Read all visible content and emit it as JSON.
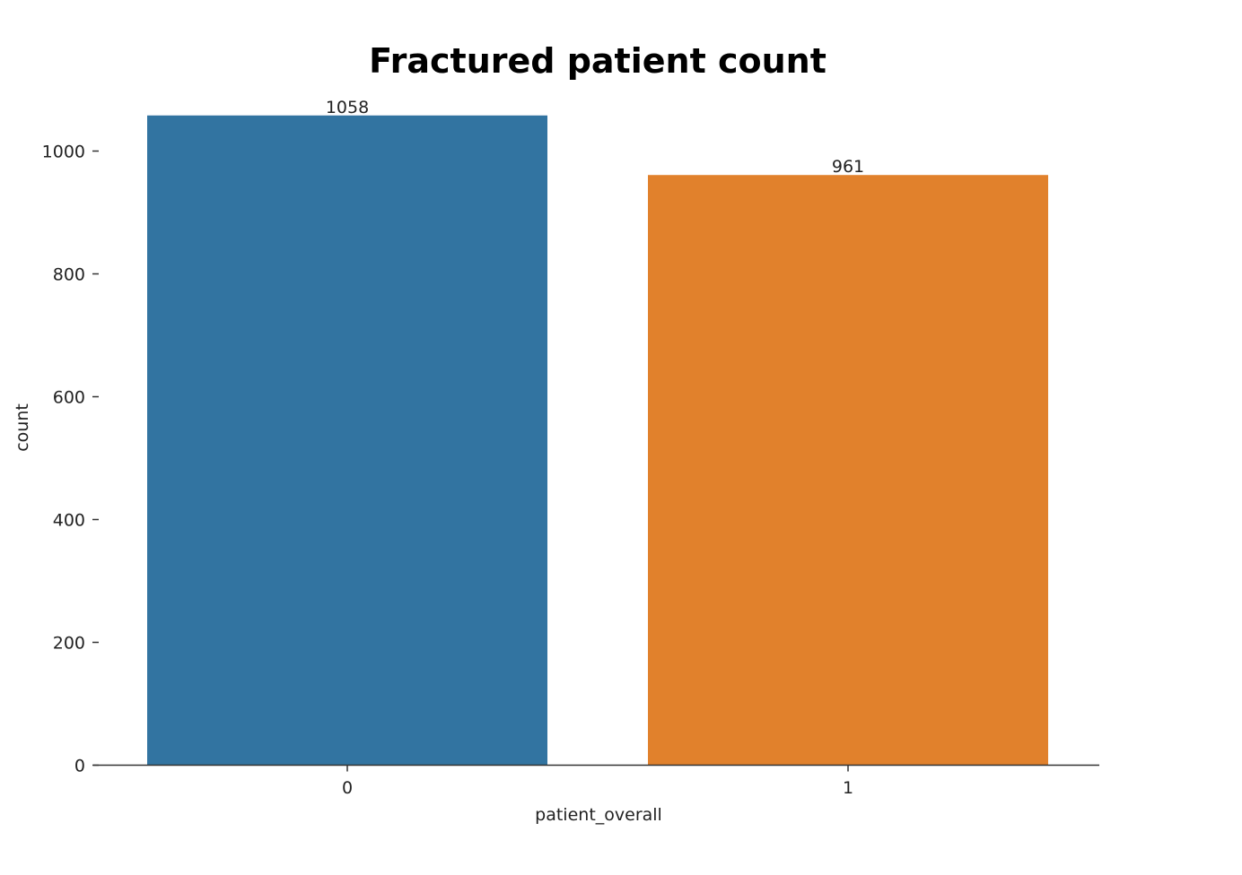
{
  "chart_data": {
    "type": "bar",
    "title": "Fractured patient count",
    "xlabel": "patient_overall",
    "ylabel": "count",
    "categories": [
      "0",
      "1"
    ],
    "values": [
      1058,
      961
    ],
    "data_labels": [
      "1058",
      "961"
    ],
    "yticks": [
      0,
      200,
      400,
      600,
      800,
      1000
    ],
    "ytick_labels": [
      "0",
      "200",
      "400",
      "600",
      "800",
      "1000"
    ],
    "ylim": [
      0,
      1100
    ],
    "colors": [
      "#3274a1",
      "#e1812c"
    ],
    "grid": false,
    "legend": "none"
  }
}
